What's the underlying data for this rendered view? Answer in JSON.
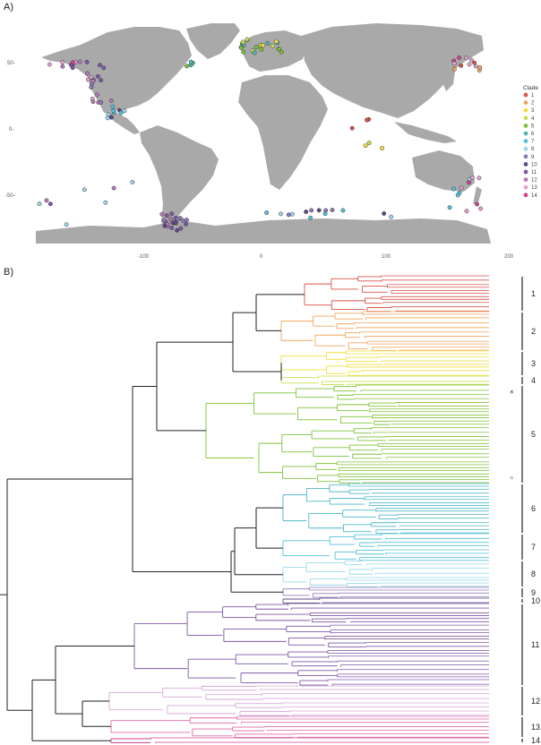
{
  "panels": {
    "a_label": "A)",
    "b_label": "B)"
  },
  "map": {
    "x_ticks": [
      "-100",
      "0",
      "100",
      "200"
    ],
    "y_ticks": [
      "50-",
      "0-",
      "-50-"
    ],
    "land_color": "#a9a9a9",
    "ocean_color": "#ffffff"
  },
  "legend": {
    "title": "Clade",
    "items": [
      {
        "label": "1",
        "color": "#d9534a"
      },
      {
        "label": "2",
        "color": "#f2a45e"
      },
      {
        "label": "3",
        "color": "#f0df3c"
      },
      {
        "label": "4",
        "color": "#c8df55"
      },
      {
        "label": "5",
        "color": "#7fc23a"
      },
      {
        "label": "6",
        "color": "#4fb7b0"
      },
      {
        "label": "7",
        "color": "#55c0dc"
      },
      {
        "label": "8",
        "color": "#9ad7ea"
      },
      {
        "label": "9",
        "color": "#8f7ab8"
      },
      {
        "label": "10",
        "color": "#5e4a86"
      },
      {
        "label": "11",
        "color": "#7d57a8"
      },
      {
        "label": "12",
        "color": "#b77ab8"
      },
      {
        "label": "13",
        "color": "#e2a2d0"
      },
      {
        "label": "14",
        "color": "#d1438f"
      }
    ]
  },
  "tree": {
    "clades": [
      {
        "label": "1",
        "color": "#d9534a"
      },
      {
        "label": "2",
        "color": "#f2a45e"
      },
      {
        "label": "3",
        "color": "#f0df3c"
      },
      {
        "label": "4",
        "color": "#c8df55"
      },
      {
        "label": "5",
        "color": "#7fc23a"
      },
      {
        "label": "6",
        "color": "#4fb7c9"
      },
      {
        "label": "7",
        "color": "#55c0dc"
      },
      {
        "label": "8",
        "color": "#9ad7ea"
      },
      {
        "label": "9",
        "color": "#8f7ab8"
      },
      {
        "label": "10",
        "color": "#5e4a86"
      },
      {
        "label": "11",
        "color": "#7d57a8"
      },
      {
        "label": "12",
        "color": "#d6a9d6"
      },
      {
        "label": "13",
        "color": "#e06aa6"
      },
      {
        "label": "14",
        "color": "#d1438f"
      }
    ],
    "stars": [
      "*",
      "*"
    ]
  }
}
